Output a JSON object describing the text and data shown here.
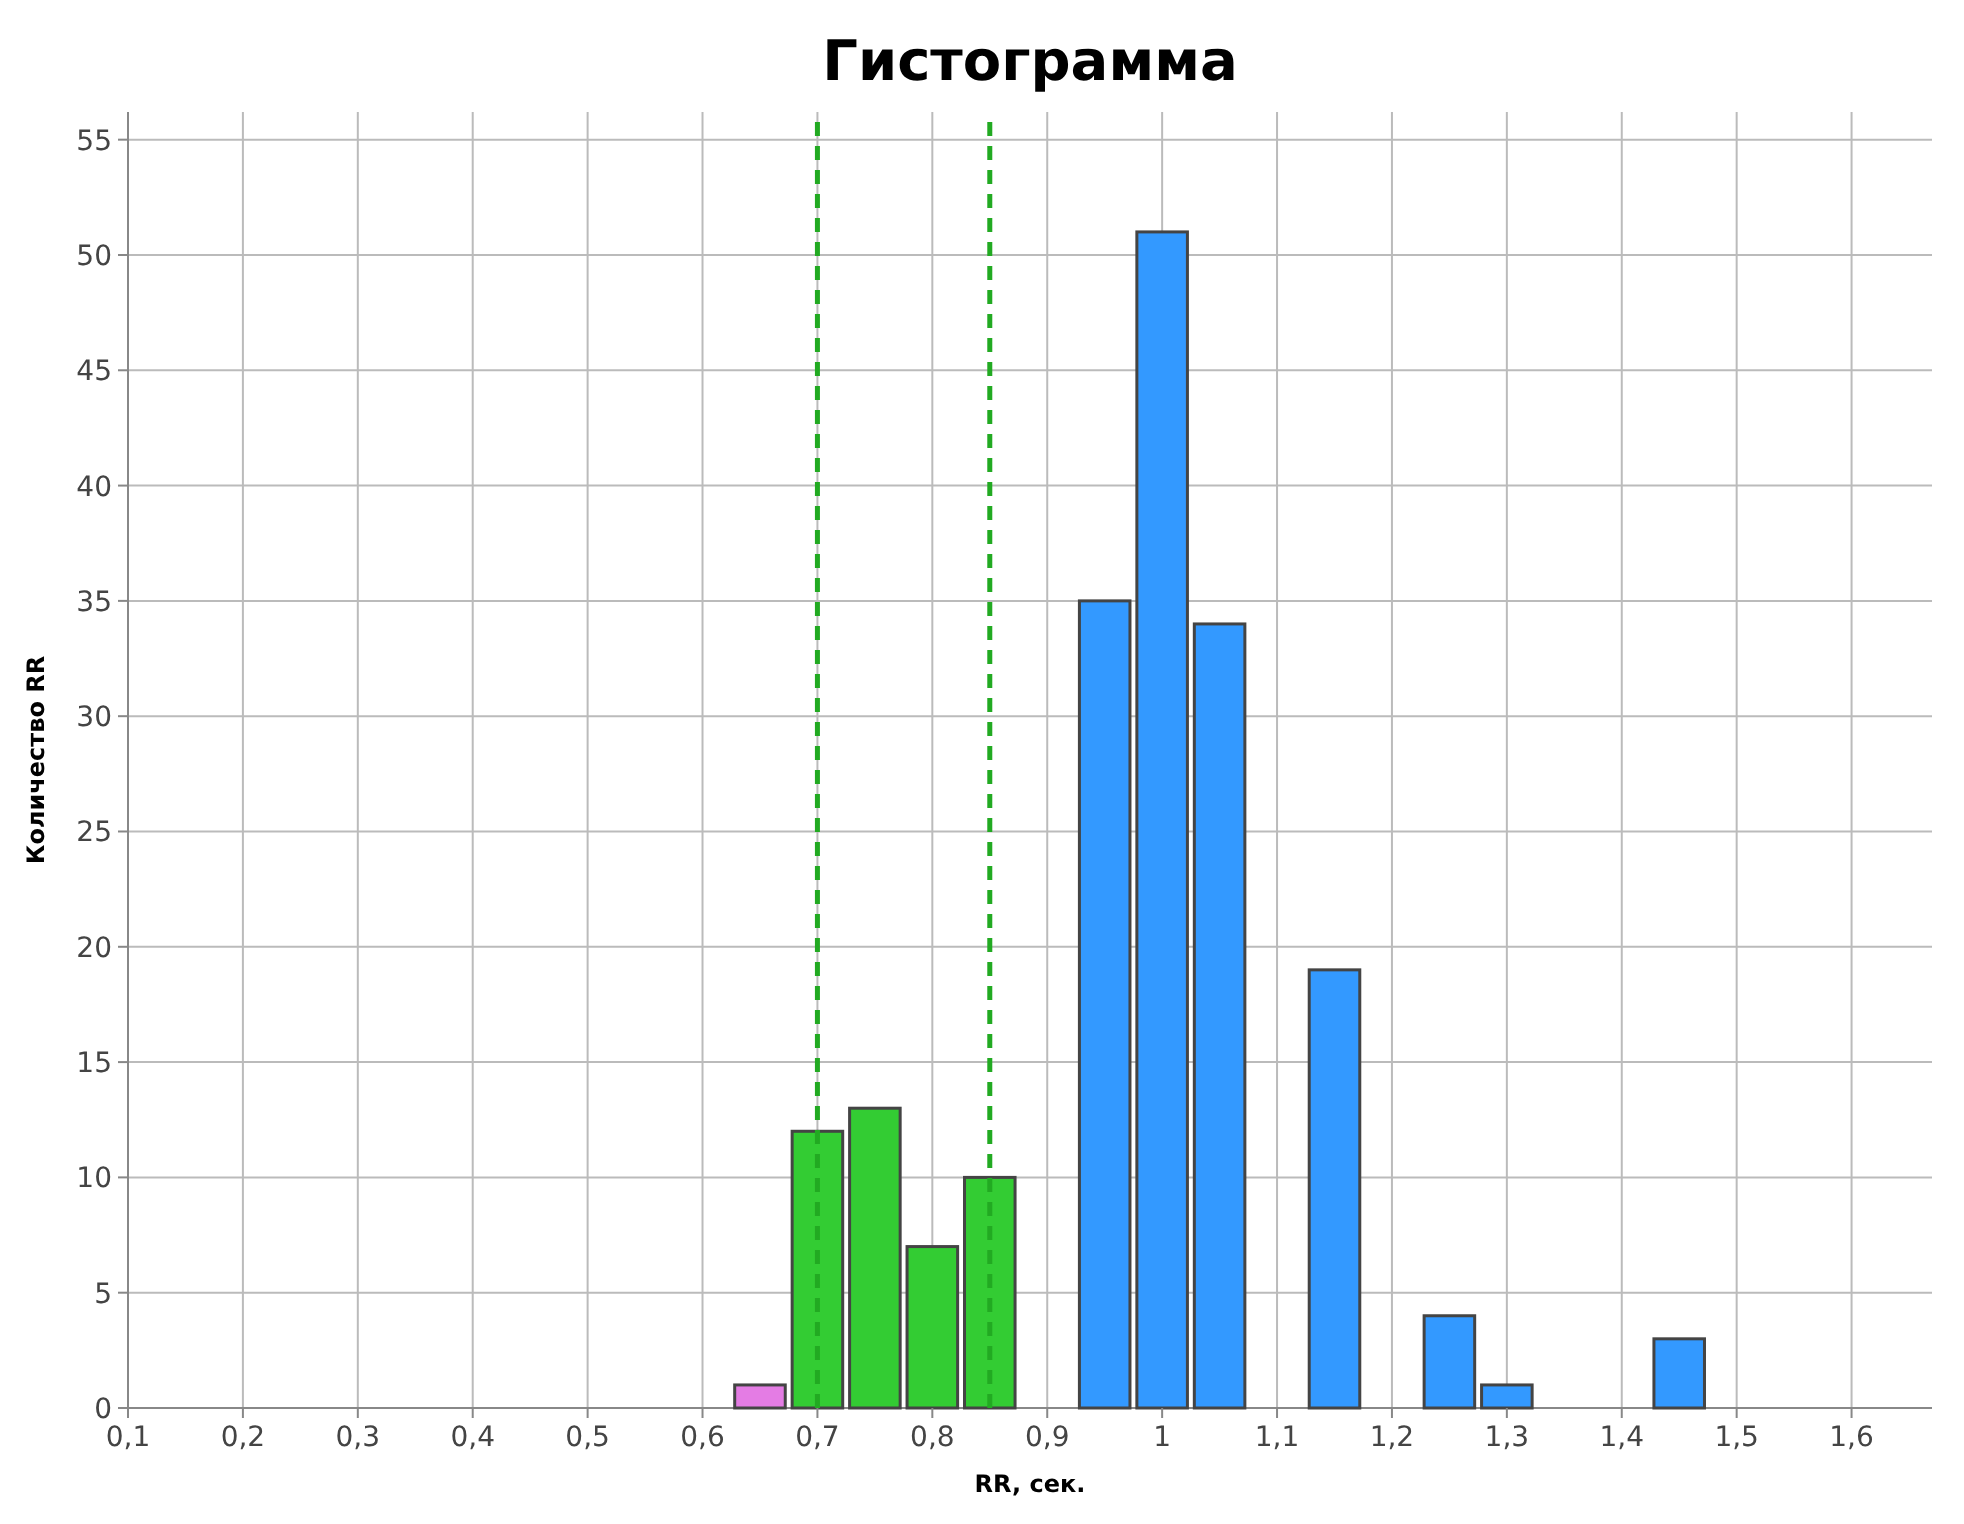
{
  "chart_data": {
    "type": "histogram",
    "title": "Гистограмма",
    "xlabel": "RR, сек.",
    "ylabel": "Количество RR",
    "bins": [
      0.625,
      0.675,
      0.725,
      0.775,
      0.825,
      0.875,
      0.925,
      0.975,
      1.025,
      1.075,
      1.125,
      1.175,
      1.225,
      1.275,
      1.325,
      1.375,
      1.425,
      1.475
    ],
    "values": [
      1,
      12,
      13,
      7,
      10,
      0,
      35,
      51,
      34,
      0,
      19,
      0,
      4,
      1,
      0,
      0,
      3
    ],
    "colors": [
      "#e47ce4",
      "#33cc33",
      "#33cc33",
      "#33cc33",
      "#33cc33",
      "#33cc33",
      "#3399ff",
      "#3399ff",
      "#3399ff",
      "#3399ff",
      "#3399ff",
      "#3399ff",
      "#3399ff",
      "#3399ff",
      "#3399ff",
      "#3399ff",
      "#3399ff"
    ],
    "xlim": [
      0.1,
      1.67
    ],
    "ylim": [
      0,
      56.2
    ],
    "xticks": [
      {
        "value": 0.1,
        "label": "0,1"
      },
      {
        "value": 0.2,
        "label": "0,2"
      },
      {
        "value": 0.3,
        "label": "0,3"
      },
      {
        "value": 0.4,
        "label": "0,4"
      },
      {
        "value": 0.5,
        "label": "0,5"
      },
      {
        "value": 0.6,
        "label": "0,6"
      },
      {
        "value": 0.7,
        "label": "0,7"
      },
      {
        "value": 0.8,
        "label": "0,8"
      },
      {
        "value": 0.9,
        "label": "0,9"
      },
      {
        "value": 1,
        "label": "1"
      },
      {
        "value": 1.1,
        "label": "1,1"
      },
      {
        "value": 1.2,
        "label": "1,2"
      },
      {
        "value": 1.3,
        "label": "1,3"
      },
      {
        "value": 1.4,
        "label": "1,4"
      },
      {
        "value": 1.5,
        "label": "1,5"
      },
      {
        "value": 1.6,
        "label": "1,6"
      }
    ],
    "yticks": [
      0,
      5,
      10,
      15,
      20,
      25,
      30,
      35,
      40,
      45,
      50,
      55
    ],
    "grid": true,
    "ref_lines": [
      {
        "axis": "x",
        "value": 0.7,
        "color": "#22aa22",
        "line_style": "dashed"
      },
      {
        "axis": "x",
        "value": 0.85,
        "color": "#22aa22",
        "line_style": "dashed"
      }
    ]
  }
}
